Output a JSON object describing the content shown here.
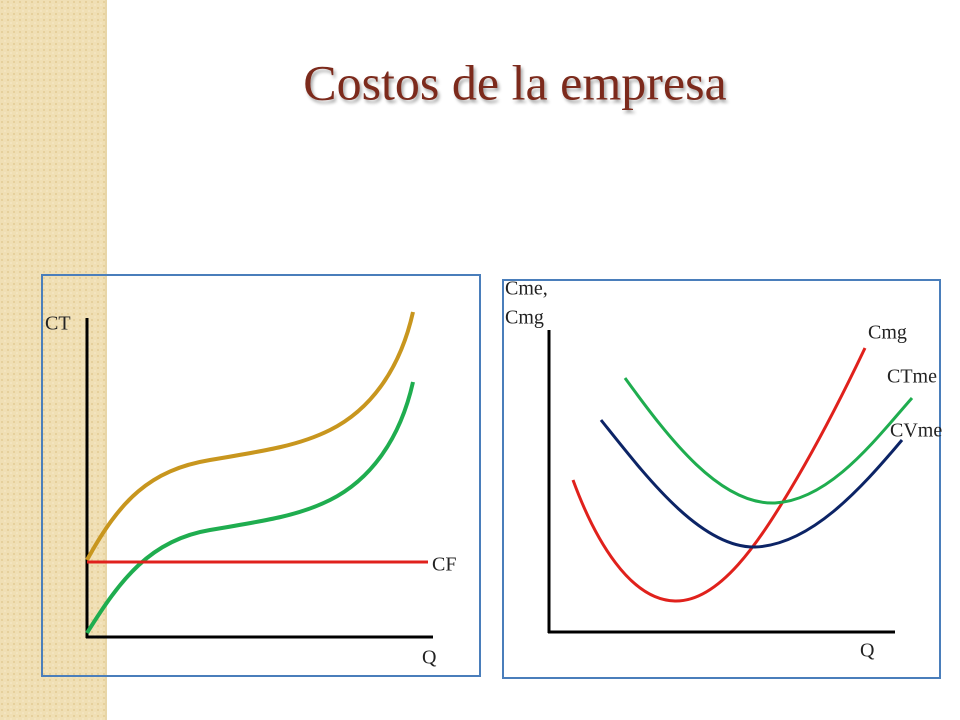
{
  "title": "Costos de la empresa",
  "left_panel": {
    "y_label": "CT",
    "line_label": "CF",
    "x_label": "Q"
  },
  "right_panel": {
    "y_label": [
      "Cme,",
      "Cmg"
    ],
    "curve_labels": [
      "Cmg",
      "CTme",
      "CVme"
    ],
    "x_label": "Q"
  }
}
